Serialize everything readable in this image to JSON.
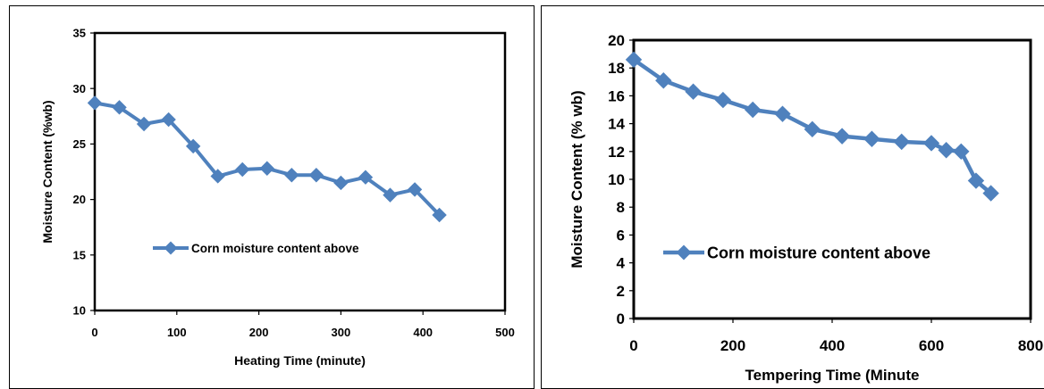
{
  "chart_data": [
    {
      "type": "line",
      "xlabel": "Heating Time (minute)",
      "ylabel": "Moisture Content (%wb)",
      "xlim": [
        0,
        500
      ],
      "ylim": [
        10,
        35
      ],
      "xticks": [
        0,
        100,
        200,
        300,
        400,
        500
      ],
      "yticks": [
        10,
        15,
        20,
        25,
        30,
        35
      ],
      "grid": false,
      "legend_position": "inside-center-left",
      "color": "#4F81BD",
      "marker": "diamond",
      "series": [
        {
          "name": "Corn moisture content above",
          "x": [
            0,
            30,
            60,
            90,
            120,
            150,
            180,
            210,
            240,
            270,
            300,
            330,
            360,
            390,
            420
          ],
          "y": [
            28.7,
            28.3,
            26.8,
            27.2,
            24.8,
            22.1,
            22.7,
            22.8,
            22.2,
            22.2,
            21.5,
            22.0,
            20.4,
            20.9,
            18.6
          ]
        }
      ]
    },
    {
      "type": "line",
      "xlabel": "Tempering Time (Minute",
      "ylabel": "Moisture Content (% wb)",
      "xlim": [
        0,
        800
      ],
      "ylim": [
        0,
        20
      ],
      "xticks": [
        0,
        200,
        400,
        600,
        800
      ],
      "yticks": [
        0,
        2,
        4,
        6,
        8,
        10,
        12,
        14,
        16,
        18,
        20
      ],
      "grid": false,
      "legend_position": "inside-bottom-left",
      "color": "#4F81BD",
      "marker": "diamond",
      "series": [
        {
          "name": "Corn moisture content above",
          "x": [
            0,
            60,
            120,
            180,
            240,
            300,
            360,
            420,
            480,
            540,
            600,
            630,
            660,
            690,
            720
          ],
          "y": [
            18.6,
            17.1,
            16.3,
            15.7,
            15.0,
            14.7,
            13.6,
            13.1,
            12.9,
            12.7,
            12.6,
            12.1,
            12.0,
            9.9,
            9.0
          ]
        }
      ]
    }
  ]
}
